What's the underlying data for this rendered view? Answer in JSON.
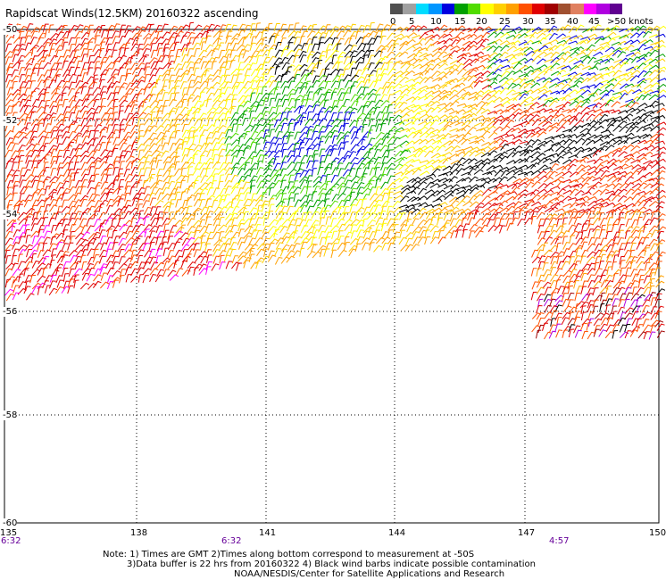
{
  "title": "Rapidscat Winds(12.5KM) 20160322 ascending",
  "legend": {
    "colors": [
      "#505050",
      "#a0a0a0",
      "#00dcff",
      "#0096ff",
      "#0000e0",
      "#00a000",
      "#50dc00",
      "#ffff00",
      "#ffd000",
      "#ffa000",
      "#ff5000",
      "#e00000",
      "#a00000",
      "#a05030",
      "#e08060",
      "#ff00ff",
      "#b000e0",
      "#600090"
    ],
    "labels": [
      "0",
      "5",
      "10",
      "15",
      "20",
      "25",
      "30",
      "35",
      "40",
      "45",
      ">50 knots"
    ]
  },
  "axes": {
    "lat_labels": [
      "-50",
      "-52",
      "-54",
      "-56",
      "-58",
      "-60"
    ],
    "lon_labels": [
      "135",
      "138",
      "141",
      "144",
      "147",
      "150"
    ]
  },
  "times": [
    "6:32",
    "6:32",
    "4:57"
  ],
  "notes": [
    "Note: 1) Times are GMT 2)Times along bottom correspond to measurement at -50S",
    "3)Data buffer is 22 hrs from 20160322 4) Black wind barbs indicate possible contamination",
    "NOAA/NESDIS/Center for Satellite Applications and Research"
  ],
  "colors": {
    "grid": "#000000",
    "time_label": "#660099"
  }
}
